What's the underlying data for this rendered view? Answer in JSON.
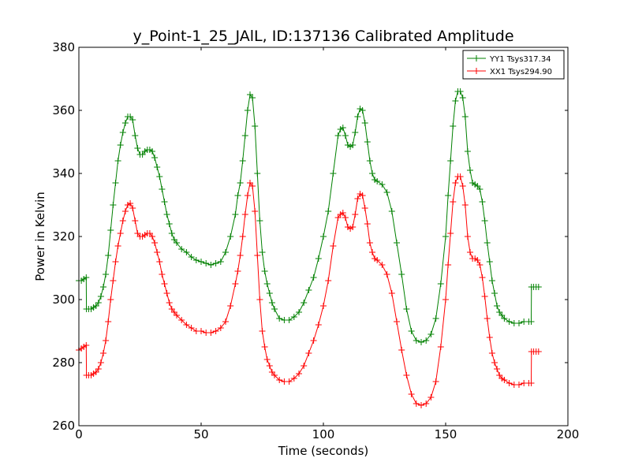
{
  "chart_data": {
    "type": "line",
    "title": "y_Point-1_25_JAlL, ID:137136 Calibrated Amplitude",
    "xlabel": "Time (seconds)",
    "ylabel": "Power in Kelvin",
    "xlim": [
      0,
      200
    ],
    "ylim": [
      260,
      380
    ],
    "xticks": [
      0,
      50,
      100,
      150,
      200
    ],
    "yticks": [
      260,
      280,
      300,
      320,
      340,
      360,
      380
    ],
    "grid": false,
    "legend_position": "top-right",
    "series": [
      {
        "name": "YY1 Tsys317.34",
        "color": "#008000",
        "points": [
          [
            0,
            306
          ],
          [
            1,
            306
          ],
          [
            2,
            306.5
          ],
          [
            3,
            307
          ],
          [
            3.1,
            297
          ],
          [
            4,
            297
          ],
          [
            5,
            297
          ],
          [
            6,
            297.5
          ],
          [
            7,
            298
          ],
          [
            8,
            299
          ],
          [
            9,
            301
          ],
          [
            10,
            304
          ],
          [
            11,
            308
          ],
          [
            12,
            314
          ],
          [
            13,
            322
          ],
          [
            14,
            330
          ],
          [
            15,
            337
          ],
          [
            16,
            344
          ],
          [
            17,
            349
          ],
          [
            18,
            353
          ],
          [
            19,
            356
          ],
          [
            20,
            358
          ],
          [
            21,
            358
          ],
          [
            22,
            357
          ],
          [
            23,
            352
          ],
          [
            24,
            348
          ],
          [
            25,
            346
          ],
          [
            26,
            346
          ],
          [
            27,
            347
          ],
          [
            28,
            347.5
          ],
          [
            29,
            347.5
          ],
          [
            30,
            347
          ],
          [
            31,
            345
          ],
          [
            32,
            342
          ],
          [
            33,
            339
          ],
          [
            34,
            335
          ],
          [
            35,
            331
          ],
          [
            36,
            327
          ],
          [
            37,
            324
          ],
          [
            38,
            321
          ],
          [
            39,
            319
          ],
          [
            40,
            318
          ],
          [
            42,
            316
          ],
          [
            44,
            315
          ],
          [
            46,
            313.5
          ],
          [
            48,
            312.5
          ],
          [
            50,
            312
          ],
          [
            52,
            311.5
          ],
          [
            54,
            311
          ],
          [
            56,
            311.5
          ],
          [
            58,
            312
          ],
          [
            60,
            315
          ],
          [
            62,
            320
          ],
          [
            64,
            327
          ],
          [
            65,
            333
          ],
          [
            66,
            337
          ],
          [
            67,
            344
          ],
          [
            68,
            352
          ],
          [
            69,
            360
          ],
          [
            70,
            365
          ],
          [
            71,
            364
          ],
          [
            72,
            355
          ],
          [
            73,
            340
          ],
          [
            74,
            325
          ],
          [
            75,
            315
          ],
          [
            76,
            309
          ],
          [
            77,
            305
          ],
          [
            78,
            302
          ],
          [
            79,
            299
          ],
          [
            80,
            297
          ],
          [
            82,
            294
          ],
          [
            84,
            293.5
          ],
          [
            86,
            293.5
          ],
          [
            88,
            294.5
          ],
          [
            90,
            296
          ],
          [
            92,
            299
          ],
          [
            94,
            303
          ],
          [
            96,
            307
          ],
          [
            98,
            313
          ],
          [
            100,
            320
          ],
          [
            102,
            328
          ],
          [
            104,
            340
          ],
          [
            106,
            352
          ],
          [
            107,
            354
          ],
          [
            108,
            354.5
          ],
          [
            109,
            352
          ],
          [
            110,
            349
          ],
          [
            111,
            348.5
          ],
          [
            112,
            349
          ],
          [
            113,
            353
          ],
          [
            114,
            358
          ],
          [
            115,
            360.5
          ],
          [
            116,
            360
          ],
          [
            117,
            356
          ],
          [
            118,
            350
          ],
          [
            119,
            344
          ],
          [
            120,
            340
          ],
          [
            121,
            338
          ],
          [
            122,
            337.5
          ],
          [
            124,
            336.5
          ],
          [
            126,
            334
          ],
          [
            128,
            328
          ],
          [
            130,
            318
          ],
          [
            132,
            308
          ],
          [
            134,
            297
          ],
          [
            136,
            290
          ],
          [
            138,
            287
          ],
          [
            140,
            286.5
          ],
          [
            142,
            287
          ],
          [
            144,
            289
          ],
          [
            146,
            294
          ],
          [
            148,
            305
          ],
          [
            150,
            320
          ],
          [
            151,
            333
          ],
          [
            152,
            344
          ],
          [
            153,
            355
          ],
          [
            154,
            363
          ],
          [
            155,
            366
          ],
          [
            156,
            366
          ],
          [
            157,
            364
          ],
          [
            158,
            358
          ],
          [
            159,
            347
          ],
          [
            160,
            341
          ],
          [
            161,
            337
          ],
          [
            162,
            336.5
          ],
          [
            163,
            336
          ],
          [
            164,
            335
          ],
          [
            165,
            331
          ],
          [
            166,
            325
          ],
          [
            167,
            318
          ],
          [
            168,
            312
          ],
          [
            169,
            306
          ],
          [
            170,
            302
          ],
          [
            171,
            298
          ],
          [
            172,
            296
          ],
          [
            173,
            295
          ],
          [
            174,
            294
          ],
          [
            176,
            293
          ],
          [
            178,
            292.5
          ],
          [
            180,
            292.5
          ],
          [
            182,
            293
          ],
          [
            184,
            293
          ],
          [
            185,
            293
          ],
          [
            185.1,
            304
          ],
          [
            186,
            304
          ],
          [
            187,
            304
          ],
          [
            188,
            304
          ]
        ]
      },
      {
        "name": "XX1 Tsys294.90",
        "color": "#ff0000",
        "points": [
          [
            0,
            284
          ],
          [
            1,
            284.5
          ],
          [
            2,
            285
          ],
          [
            3,
            285.5
          ],
          [
            3.1,
            276
          ],
          [
            4,
            276
          ],
          [
            5,
            276
          ],
          [
            6,
            276.5
          ],
          [
            7,
            277
          ],
          [
            8,
            278
          ],
          [
            9,
            280
          ],
          [
            10,
            283
          ],
          [
            11,
            287
          ],
          [
            12,
            293
          ],
          [
            13,
            300
          ],
          [
            14,
            306
          ],
          [
            15,
            312
          ],
          [
            16,
            317
          ],
          [
            17,
            321
          ],
          [
            18,
            325
          ],
          [
            19,
            328
          ],
          [
            20,
            330
          ],
          [
            21,
            330.5
          ],
          [
            22,
            329
          ],
          [
            23,
            325
          ],
          [
            24,
            321
          ],
          [
            25,
            320
          ],
          [
            26,
            320
          ],
          [
            27,
            320.5
          ],
          [
            28,
            321
          ],
          [
            29,
            321
          ],
          [
            30,
            320
          ],
          [
            31,
            318
          ],
          [
            32,
            315
          ],
          [
            33,
            312
          ],
          [
            34,
            308
          ],
          [
            35,
            305
          ],
          [
            36,
            302
          ],
          [
            37,
            299
          ],
          [
            38,
            297
          ],
          [
            39,
            296
          ],
          [
            40,
            295
          ],
          [
            42,
            293.5
          ],
          [
            44,
            292
          ],
          [
            46,
            291
          ],
          [
            48,
            290
          ],
          [
            50,
            290
          ],
          [
            52,
            289.5
          ],
          [
            54,
            289.5
          ],
          [
            56,
            290
          ],
          [
            58,
            291
          ],
          [
            60,
            293
          ],
          [
            62,
            298
          ],
          [
            64,
            305
          ],
          [
            65,
            309
          ],
          [
            66,
            314
          ],
          [
            67,
            320
          ],
          [
            68,
            327
          ],
          [
            69,
            333
          ],
          [
            70,
            337
          ],
          [
            71,
            336
          ],
          [
            72,
            328
          ],
          [
            73,
            314
          ],
          [
            74,
            300
          ],
          [
            75,
            290
          ],
          [
            76,
            285
          ],
          [
            77,
            281
          ],
          [
            78,
            279
          ],
          [
            79,
            277
          ],
          [
            80,
            276
          ],
          [
            82,
            274.5
          ],
          [
            84,
            274
          ],
          [
            86,
            274
          ],
          [
            88,
            275
          ],
          [
            90,
            276.5
          ],
          [
            92,
            279
          ],
          [
            94,
            283
          ],
          [
            96,
            287
          ],
          [
            98,
            292
          ],
          [
            100,
            298
          ],
          [
            102,
            306
          ],
          [
            104,
            317
          ],
          [
            106,
            326
          ],
          [
            107,
            327
          ],
          [
            108,
            327.5
          ],
          [
            109,
            326
          ],
          [
            110,
            323
          ],
          [
            111,
            322.5
          ],
          [
            112,
            323
          ],
          [
            113,
            327
          ],
          [
            114,
            332
          ],
          [
            115,
            333.5
          ],
          [
            116,
            333
          ],
          [
            117,
            329
          ],
          [
            118,
            324
          ],
          [
            119,
            318
          ],
          [
            120,
            315
          ],
          [
            121,
            313
          ],
          [
            122,
            312.5
          ],
          [
            124,
            311
          ],
          [
            126,
            308
          ],
          [
            128,
            302
          ],
          [
            130,
            293
          ],
          [
            132,
            284
          ],
          [
            134,
            276
          ],
          [
            136,
            270
          ],
          [
            138,
            267
          ],
          [
            140,
            266.5
          ],
          [
            142,
            267
          ],
          [
            144,
            269
          ],
          [
            146,
            274
          ],
          [
            148,
            285
          ],
          [
            150,
            300
          ],
          [
            151,
            311
          ],
          [
            152,
            321
          ],
          [
            153,
            331
          ],
          [
            154,
            337
          ],
          [
            155,
            339
          ],
          [
            156,
            339
          ],
          [
            157,
            336
          ],
          [
            158,
            330
          ],
          [
            159,
            320
          ],
          [
            160,
            315
          ],
          [
            161,
            313
          ],
          [
            162,
            313
          ],
          [
            163,
            312.5
          ],
          [
            164,
            311
          ],
          [
            165,
            307
          ],
          [
            166,
            301
          ],
          [
            167,
            294
          ],
          [
            168,
            288
          ],
          [
            169,
            283
          ],
          [
            170,
            280
          ],
          [
            171,
            278
          ],
          [
            172,
            276
          ],
          [
            173,
            275
          ],
          [
            174,
            274.5
          ],
          [
            176,
            273.5
          ],
          [
            178,
            273
          ],
          [
            180,
            273
          ],
          [
            182,
            273.5
          ],
          [
            184,
            273.5
          ],
          [
            185,
            273.5
          ],
          [
            185.1,
            283.5
          ],
          [
            186,
            283.5
          ],
          [
            187,
            283.5
          ],
          [
            188,
            283.5
          ]
        ]
      }
    ]
  }
}
